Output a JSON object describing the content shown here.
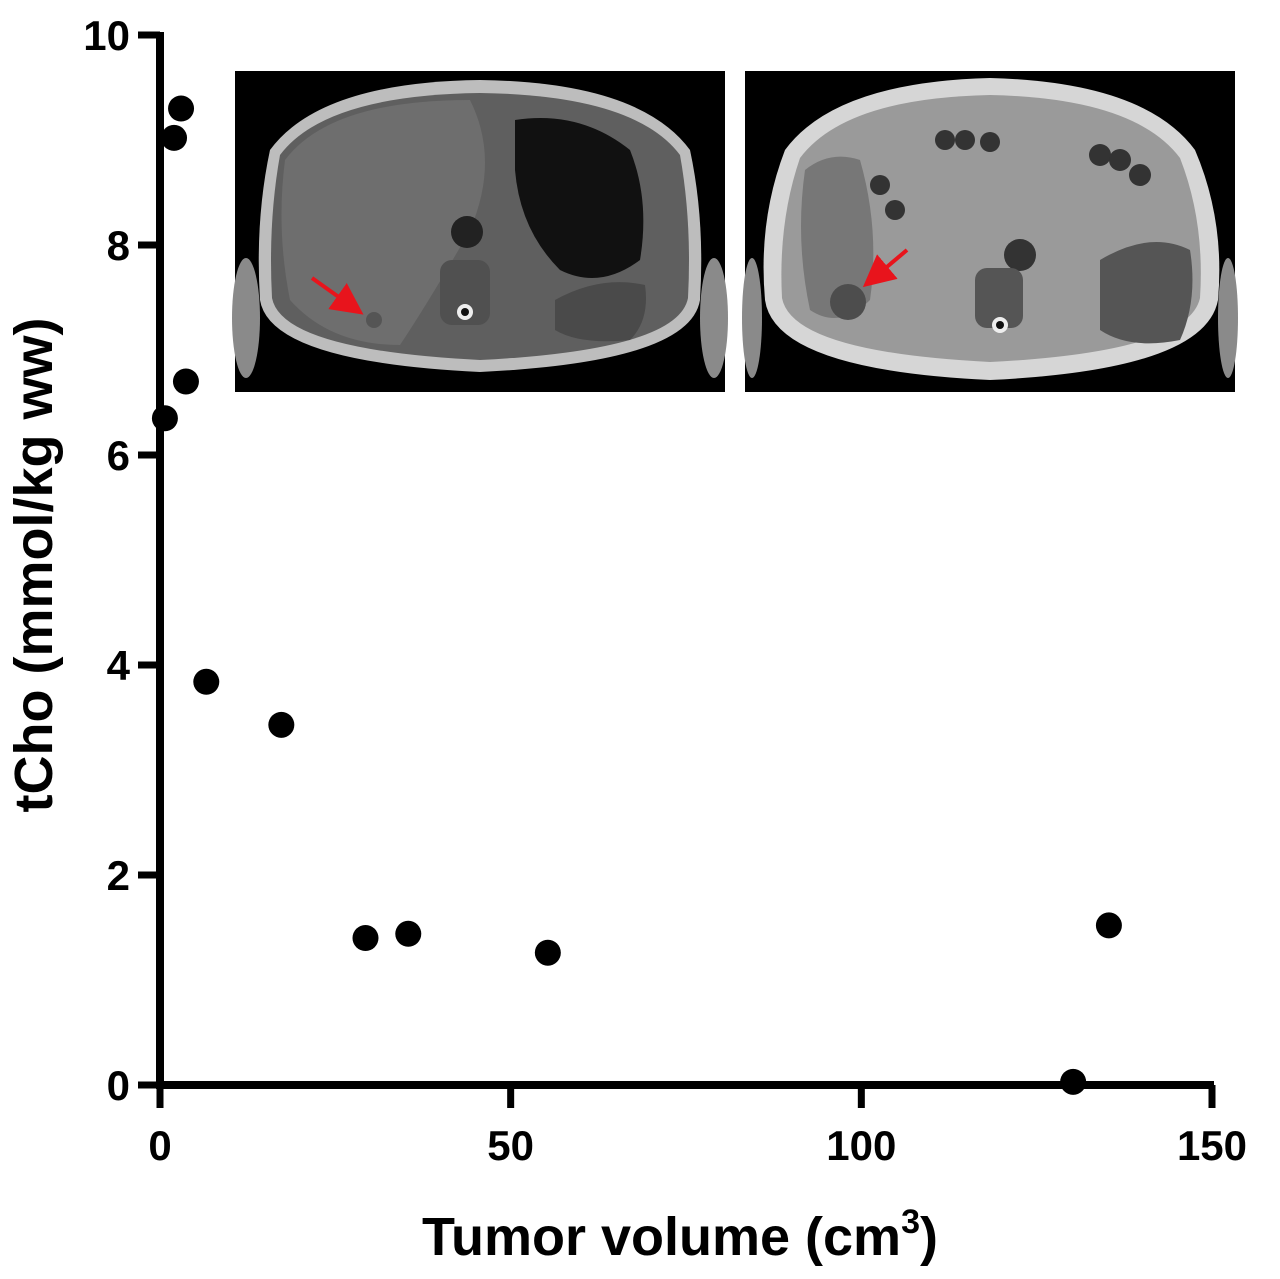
{
  "chart_data": {
    "type": "scatter",
    "xlabel": "Tumor volume (cm",
    "xlabel_sup": "3",
    "xlabel_close": ")",
    "ylabel": "tCho (mmol/kg ww)",
    "xlim": [
      0,
      150
    ],
    "ylim": [
      0,
      10
    ],
    "x_ticks": [
      0,
      50,
      100,
      150
    ],
    "y_ticks": [
      0,
      2,
      4,
      6,
      8,
      10
    ],
    "grid": false,
    "marker_color": "#000000",
    "series": [
      {
        "points": [
          {
            "x": 0.7,
            "y": 6.35
          },
          {
            "x": 2.0,
            "y": 9.02
          },
          {
            "x": 3.0,
            "y": 9.3
          },
          {
            "x": 3.7,
            "y": 6.7
          },
          {
            "x": 6.6,
            "y": 3.84
          },
          {
            "x": 17.3,
            "y": 3.43
          },
          {
            "x": 29.3,
            "y": 1.4
          },
          {
            "x": 35.4,
            "y": 1.44
          },
          {
            "x": 55.3,
            "y": 1.26
          },
          {
            "x": 130.2,
            "y": 0.03
          },
          {
            "x": 135.3,
            "y": 1.52
          }
        ]
      }
    ],
    "insets": [
      {
        "name": "mri-slice-left",
        "arrow_color": "#e8141c"
      },
      {
        "name": "mri-slice-right",
        "arrow_color": "#e8141c"
      }
    ]
  }
}
